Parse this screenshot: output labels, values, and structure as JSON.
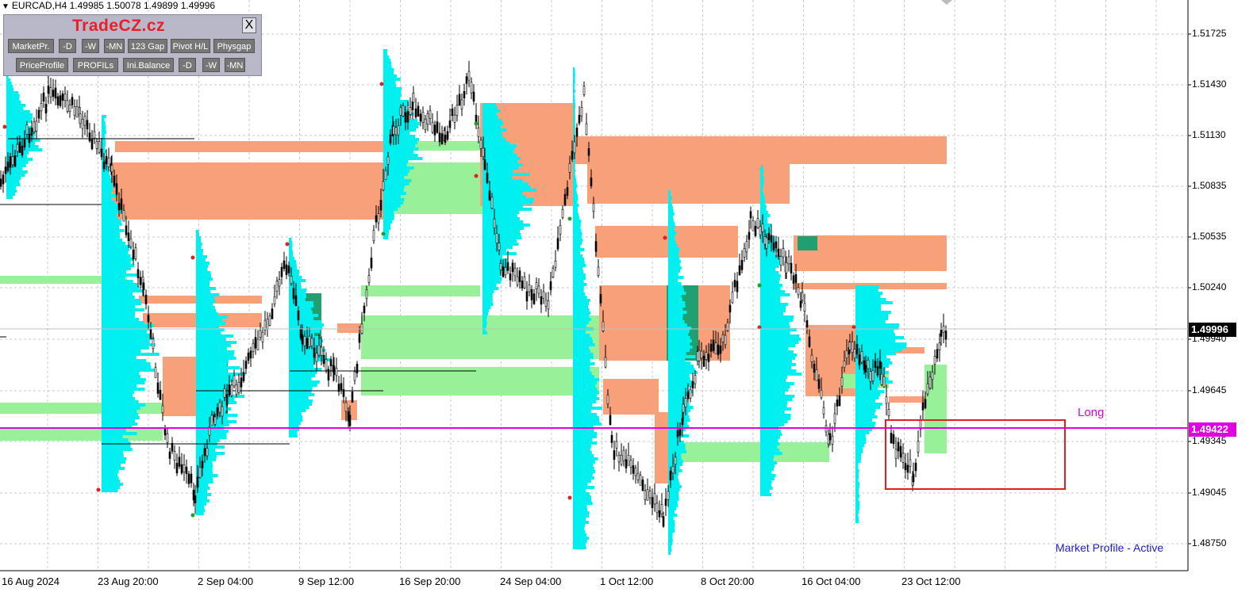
{
  "header": {
    "title": "EURCAD,H4  1.49985 1.50078 1.49899 1.49996"
  },
  "panel": {
    "brand": "TradeCZ.cz",
    "close_label": "X",
    "row1": [
      "MarketPr.",
      "-D",
      "-W",
      "-MN",
      "123 Gap",
      "Pivot H/L",
      "Physgap"
    ],
    "row2": [
      "PriceProfile",
      "PROFILs",
      "Ini.Balance",
      "-D",
      "-W",
      "-MN"
    ]
  },
  "price_axis": {
    "labels": [
      "1.51725",
      "1.51430",
      "1.51130",
      "1.50835",
      "1.50535",
      "1.50240",
      "1.49940",
      "1.49645",
      "1.49345",
      "1.49045",
      "1.48750"
    ],
    "current_price": "1.49996",
    "line_price": "1.49422"
  },
  "time_axis": {
    "labels": [
      "16 Aug 2024",
      "23 Aug 20:00",
      "2 Sep 04:00",
      "9 Sep 12:00",
      "16 Sep 20:00",
      "24 Sep 04:00",
      "1 Oct 12:00",
      "8 Oct 20:00",
      "16 Oct 04:00",
      "23 Oct 12:00"
    ]
  },
  "annotations": {
    "long_label": "Long",
    "status": "Market Profile - Active"
  },
  "colors": {
    "salmon": "#f8a07a",
    "light_green": "#98f098",
    "cyan": "#00f0f0",
    "dark_green": "#20a070",
    "magenta_line": "#e000e0",
    "rect_red": "#e02020",
    "status_blue": "#2020c0"
  }
}
